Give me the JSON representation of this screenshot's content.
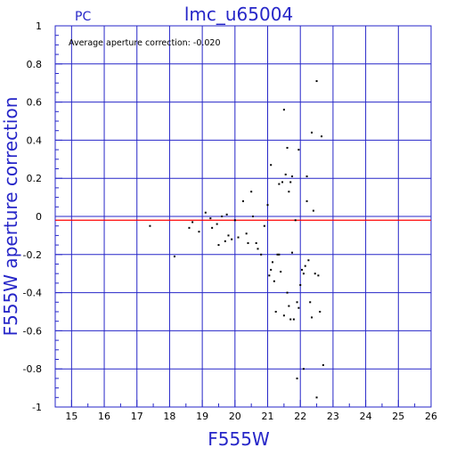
{
  "chart_data": {
    "type": "scatter",
    "title": "lmc_u65004",
    "chip_label": "PC",
    "annotation": "Average aperture correction:  -0.020",
    "xlabel": "F555W",
    "ylabel": "F555W aperture correction",
    "xlim": [
      14.5,
      26
    ],
    "ylim": [
      -1,
      1
    ],
    "xticks": [
      15,
      16,
      17,
      18,
      19,
      20,
      21,
      22,
      23,
      24,
      25,
      26
    ],
    "yticks": [
      1,
      0.8,
      0.6,
      0.4,
      0.2,
      0,
      -0.2,
      -0.4,
      -0.6,
      -0.8,
      -1
    ],
    "grid": true,
    "mean_line": -0.02,
    "colors": {
      "frame": "#2626c8",
      "grid": "#2626c8",
      "mean_line": "#ff0000",
      "points": "#000000"
    },
    "points": [
      [
        17.4,
        -0.05
      ],
      [
        18.15,
        -0.21
      ],
      [
        18.6,
        -0.06
      ],
      [
        18.7,
        -0.03
      ],
      [
        18.9,
        -0.08
      ],
      [
        19.1,
        0.02
      ],
      [
        19.25,
        -0.01
      ],
      [
        19.3,
        -0.06
      ],
      [
        19.45,
        -0.04
      ],
      [
        19.5,
        -0.15
      ],
      [
        19.6,
        0.0
      ],
      [
        19.7,
        -0.13
      ],
      [
        19.75,
        0.01
      ],
      [
        19.8,
        -0.1
      ],
      [
        19.9,
        -0.12
      ],
      [
        20.0,
        -0.02
      ],
      [
        20.1,
        -0.11
      ],
      [
        20.25,
        0.08
      ],
      [
        20.35,
        -0.09
      ],
      [
        20.4,
        -0.14
      ],
      [
        20.5,
        0.13
      ],
      [
        20.55,
        0.0
      ],
      [
        20.65,
        -0.14
      ],
      [
        20.7,
        -0.17
      ],
      [
        20.8,
        -0.2
      ],
      [
        20.9,
        -0.05
      ],
      [
        21.0,
        0.06
      ],
      [
        21.05,
        -0.31
      ],
      [
        21.1,
        0.27
      ],
      [
        21.1,
        -0.28
      ],
      [
        21.15,
        -0.24
      ],
      [
        21.2,
        -0.34
      ],
      [
        21.25,
        -0.5
      ],
      [
        21.3,
        -0.2
      ],
      [
        21.35,
        0.17
      ],
      [
        21.35,
        -0.2
      ],
      [
        21.4,
        -0.29
      ],
      [
        21.45,
        0.18
      ],
      [
        21.5,
        0.56
      ],
      [
        21.5,
        -0.52
      ],
      [
        21.55,
        0.22
      ],
      [
        21.6,
        0.36
      ],
      [
        21.6,
        -0.4
      ],
      [
        21.65,
        0.13
      ],
      [
        21.65,
        -0.47
      ],
      [
        21.7,
        0.18
      ],
      [
        21.7,
        -0.54
      ],
      [
        21.75,
        0.21
      ],
      [
        21.75,
        -0.19
      ],
      [
        21.8,
        -0.54
      ],
      [
        21.85,
        -0.02
      ],
      [
        21.9,
        -0.85
      ],
      [
        21.9,
        -0.45
      ],
      [
        21.95,
        0.35
      ],
      [
        21.95,
        -0.48
      ],
      [
        22.0,
        -0.36
      ],
      [
        22.05,
        -0.28
      ],
      [
        22.1,
        -0.8
      ],
      [
        22.1,
        -0.3
      ],
      [
        22.15,
        -0.26
      ],
      [
        22.2,
        0.21
      ],
      [
        22.2,
        0.08
      ],
      [
        22.25,
        -0.23
      ],
      [
        22.3,
        -0.45
      ],
      [
        22.35,
        0.44
      ],
      [
        22.35,
        -0.53
      ],
      [
        22.4,
        0.03
      ],
      [
        22.45,
        -0.3
      ],
      [
        22.5,
        0.71
      ],
      [
        22.5,
        -0.95
      ],
      [
        22.55,
        -0.31
      ],
      [
        22.6,
        -0.5
      ],
      [
        22.65,
        0.42
      ],
      [
        22.7,
        -0.78
      ]
    ]
  }
}
